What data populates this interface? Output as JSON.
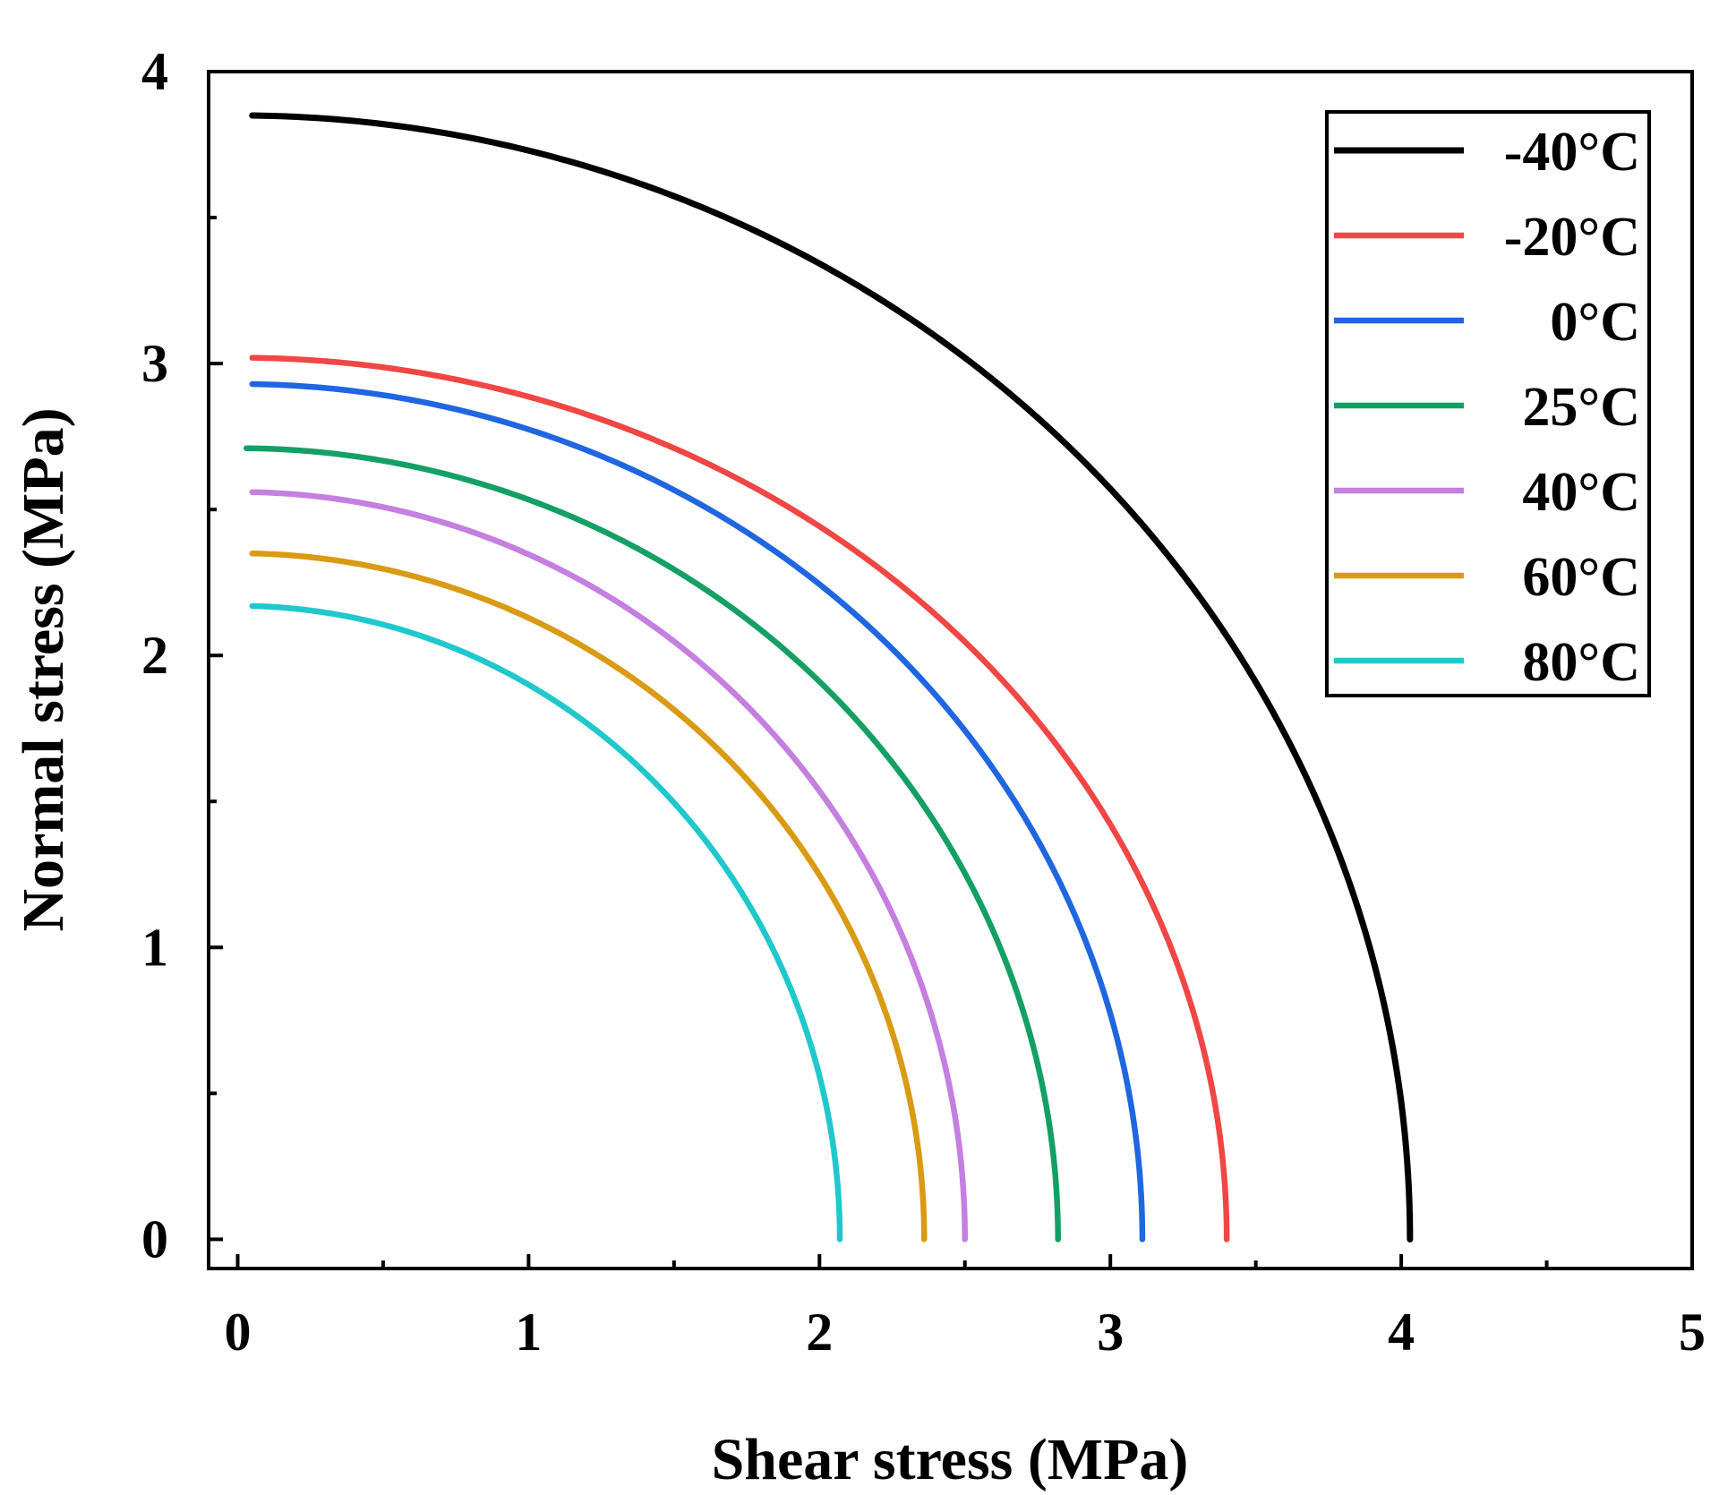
{
  "chart_data": {
    "type": "line",
    "title": "",
    "xlabel": "Shear stress (MPa)",
    "ylabel": "Normal stress (MPa)",
    "xlim": [
      -0.1,
      5.0
    ],
    "ylim": [
      -0.1,
      4.0
    ],
    "xticks": [
      "0",
      "1",
      "2",
      "3",
      "4",
      "5"
    ],
    "yticks": [
      "0",
      "1",
      "2",
      "3",
      "4"
    ],
    "grid": false,
    "legend_position": "top-right",
    "series": [
      {
        "name": "-40°C",
        "color": "#000000",
        "x_start": 0.05,
        "x_intercept": 4.03,
        "y_intercept": 3.85
      },
      {
        "name": "-20°C",
        "color": "#f04646",
        "x_start": 0.05,
        "x_intercept": 3.4,
        "y_intercept": 3.02
      },
      {
        "name": "0°C",
        "color": "#1f66e0",
        "x_start": 0.05,
        "x_intercept": 3.11,
        "y_intercept": 2.93
      },
      {
        "name": "25°C",
        "color": "#14a064",
        "x_start": 0.03,
        "x_intercept": 2.82,
        "y_intercept": 2.71
      },
      {
        "name": "40°C",
        "color": "#c47fe0",
        "x_start": 0.05,
        "x_intercept": 2.5,
        "y_intercept": 2.56
      },
      {
        "name": "60°C",
        "color": "#d99a14",
        "x_start": 0.05,
        "x_intercept": 2.36,
        "y_intercept": 2.35
      },
      {
        "name": "80°C",
        "color": "#20c8cc",
        "x_start": 0.05,
        "x_intercept": 2.07,
        "y_intercept": 2.17
      }
    ]
  }
}
